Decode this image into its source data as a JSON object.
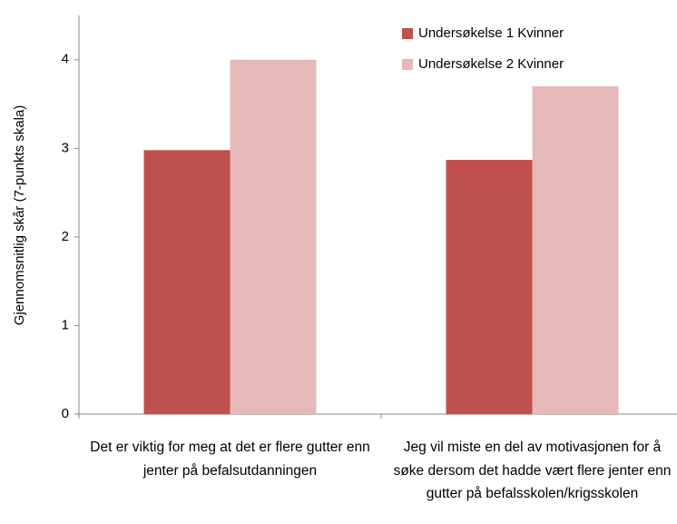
{
  "chart_data": {
    "type": "bar",
    "y_label": "Gjennomsnitlig skår (7-punkts skala)",
    "categories": [
      "Det er viktig for meg at det er flere gutter enn jenter på befalsutdanningen",
      "Jeg vil miste en del av motivasjonen for å søke dersom det hadde vært flere jenter enn gutter på befalsskolen/krigsskolen"
    ],
    "series": [
      {
        "name": "Undersøkelse 1 Kvinner",
        "color": "#c0504d",
        "values": [
          2.98,
          2.87
        ]
      },
      {
        "name": "Undersøkelse 2 Kvinner",
        "color": "#e6b9b8",
        "values": [
          4.0,
          3.7
        ]
      }
    ],
    "ylim": [
      0,
      4.5
    ],
    "yticks": [
      0,
      1,
      2,
      3,
      4
    ],
    "grid": false,
    "legend": "top-right"
  }
}
